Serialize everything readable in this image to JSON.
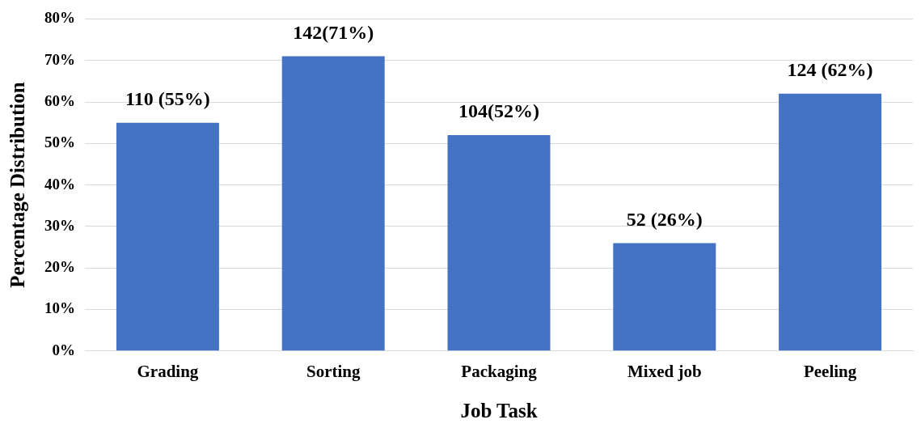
{
  "chart_data": {
    "type": "bar",
    "xlabel": "Job Task",
    "ylabel": "Percentage Distribution",
    "categories": [
      "Grading",
      "Sorting",
      "Packaging",
      "Mixed job",
      "Peeling"
    ],
    "values": [
      55,
      71,
      52,
      26,
      62
    ],
    "value_labels": [
      "110 (55%)",
      "142(71%)",
      "104(52%)",
      "52 (26%)",
      "124 (62%)"
    ],
    "color": "#4472c4",
    "ylim": [
      0,
      80
    ],
    "yticks": [
      {
        "value": 0,
        "label": "0%"
      },
      {
        "value": 10,
        "label": "10%"
      },
      {
        "value": 20,
        "label": "20%"
      },
      {
        "value": 30,
        "label": "30%"
      },
      {
        "value": 40,
        "label": "40%"
      },
      {
        "value": 50,
        "label": "50%"
      },
      {
        "value": 60,
        "label": "60%"
      },
      {
        "value": 70,
        "label": "70%"
      },
      {
        "value": 80,
        "label": "80%"
      }
    ],
    "grid": "y"
  }
}
